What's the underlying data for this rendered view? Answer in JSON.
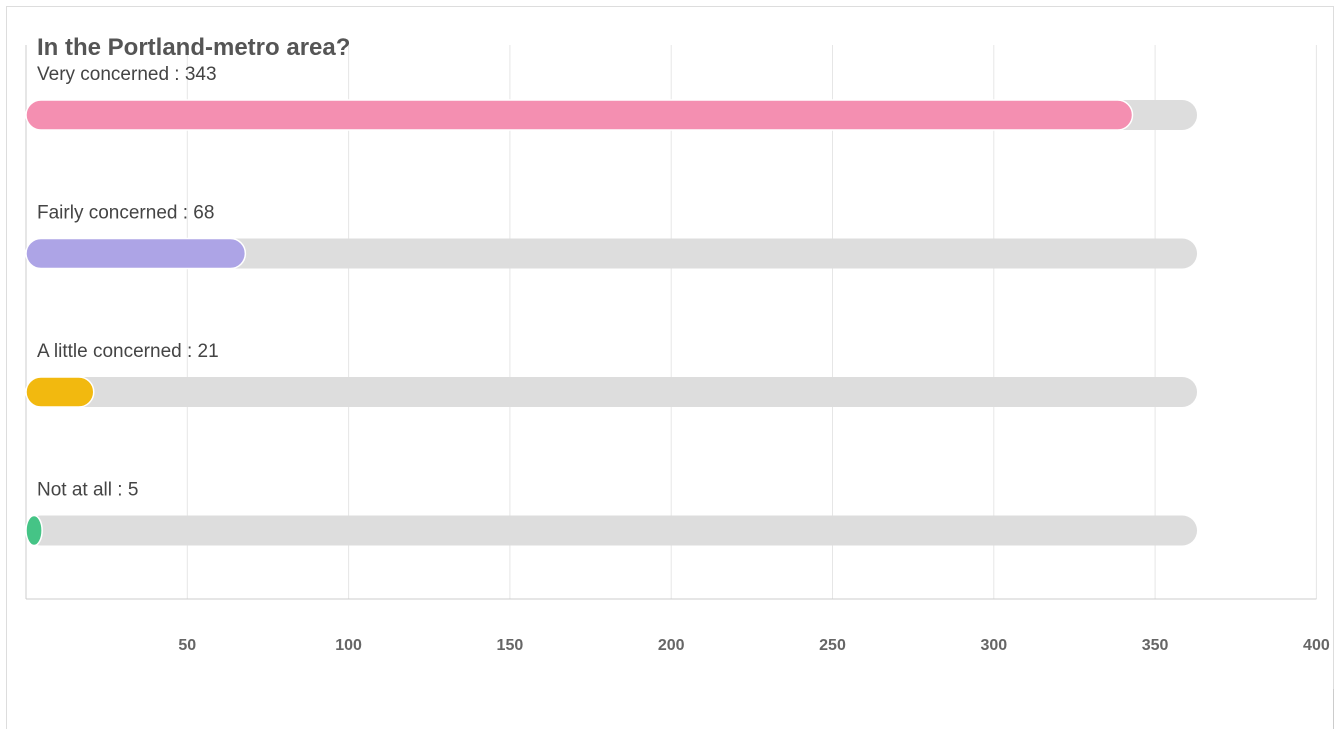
{
  "chart_data": {
    "type": "bar",
    "orientation": "horizontal",
    "title": "In the Portland-metro area?",
    "categories": [
      "Very concerned",
      "Fairly concerned",
      "A little concerned",
      "Not at all"
    ],
    "values": [
      343,
      68,
      21,
      5
    ],
    "labels": [
      "Very concerned : 343",
      "Fairly concerned : 68",
      "A little concerned : 21",
      "Not at all : 5"
    ],
    "colors": [
      "#f48fb1",
      "#ada4e6",
      "#f2b90f",
      "#45c486"
    ],
    "track_color": "#dddddd",
    "track_max": 363,
    "xlim": [
      0,
      400
    ],
    "x_ticks": [
      50,
      100,
      150,
      200,
      250,
      300,
      350,
      400
    ],
    "tick_labels": [
      "50",
      "100",
      "150",
      "200",
      "250",
      "300",
      "350",
      "400"
    ],
    "grid": true
  }
}
